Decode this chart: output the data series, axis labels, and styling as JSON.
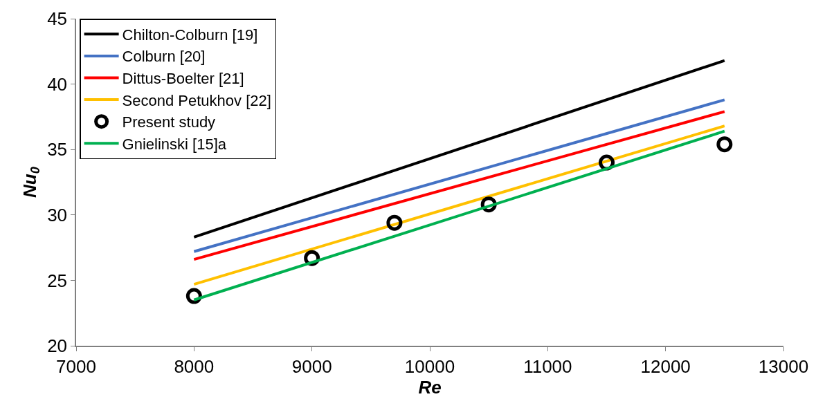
{
  "chart_data": {
    "type": "line",
    "xlabel": "Re",
    "ylabel": "Nu$_{0}$",
    "xlim": [
      7000,
      13000
    ],
    "xticks": [
      7000,
      8000,
      9000,
      10000,
      11000,
      12000,
      13000
    ],
    "ylim": [
      20,
      45
    ],
    "yticks": [
      20,
      25,
      30,
      35,
      40,
      45
    ],
    "legend": "top left",
    "x": [
      8000,
      12500
    ],
    "series": [
      {
        "name": "Chilton-Colburn [19]",
        "color": "#000000",
        "values": [
          28.3,
          41.8
        ]
      },
      {
        "name": "Colburn [20]",
        "color": "#4472c4",
        "values": [
          27.2,
          38.8
        ]
      },
      {
        "name": "Dittus-Boelter [21]",
        "color": "#ff0000",
        "values": [
          26.6,
          37.9
        ]
      },
      {
        "name": "Second Petukhov [22]",
        "color": "#ffc000",
        "values": [
          24.7,
          36.8
        ]
      },
      {
        "name": "Present study",
        "color": "#000000",
        "type": "scatter",
        "marker": "circle",
        "x": [
          8000,
          9000,
          9700,
          10500,
          11500,
          12500
        ],
        "values": [
          23.8,
          26.7,
          29.4,
          30.8,
          34.0,
          35.4
        ]
      },
      {
        "name": "Gnielinski [15]a",
        "color": "#00b050",
        "values": [
          23.5,
          36.4
        ]
      }
    ]
  }
}
